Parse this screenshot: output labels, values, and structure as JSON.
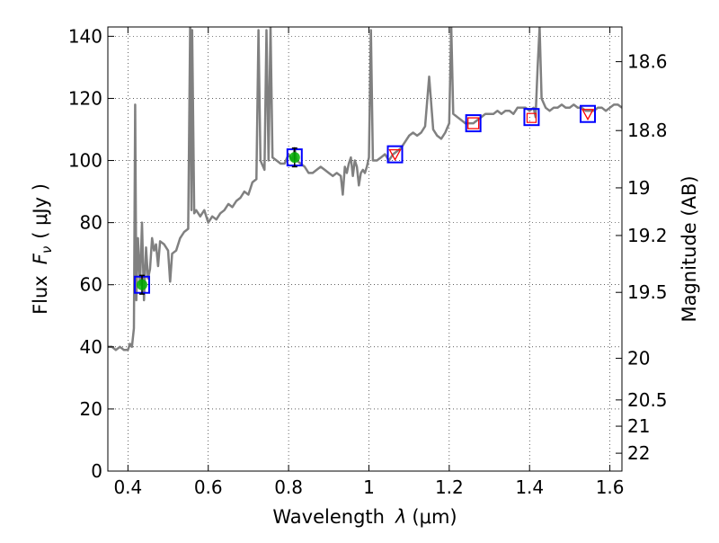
{
  "chart_data": {
    "type": "line",
    "xlabel_text": "Wavelength",
    "xlabel_symbol": "λ",
    "xlabel_unit": "(μm)",
    "ylabel_text": "Flux",
    "ylabel_symbol": "F",
    "ylabel_sub": "ν",
    "ylabel_unit": "( μJy )",
    "y2label": "Magnitude (AB)",
    "xlim": [
      0.35,
      1.63
    ],
    "ylim": [
      0,
      143
    ],
    "x_ticks": [
      0.4,
      0.6,
      0.8,
      1.0,
      1.2,
      1.4,
      1.6
    ],
    "x_tick_labels": [
      "0.4",
      "0.6",
      "0.8",
      "1",
      "1.2",
      "1.4",
      "1.6"
    ],
    "y_ticks": [
      0,
      20,
      40,
      60,
      80,
      100,
      120,
      140
    ],
    "y_tick_labels": [
      "0",
      "20",
      "40",
      "60",
      "80",
      "100",
      "120",
      "140"
    ],
    "mag_ticks": [
      18.6,
      18.8,
      19,
      19.2,
      19.5,
      20,
      20.5,
      21,
      22
    ],
    "mag_tick_labels": [
      "18.6",
      "18.8",
      "19",
      "19.2",
      "19.5",
      "20",
      "20.5",
      "21",
      "22"
    ],
    "grid": true,
    "colors": {
      "spectrum": "#808080",
      "box": "#0000ff",
      "green_marker": "#00b000",
      "red_marker": "#ff0000",
      "error_bar": "#000000",
      "axis": "#000000",
      "grid": "#000000"
    },
    "series": [
      {
        "points": [
          [
            0.35,
            40
          ],
          [
            0.36,
            40
          ],
          [
            0.37,
            39
          ],
          [
            0.38,
            40
          ],
          [
            0.39,
            39
          ],
          [
            0.4,
            39
          ],
          [
            0.405,
            41
          ],
          [
            0.41,
            40
          ],
          [
            0.415,
            46
          ],
          [
            0.418,
            118
          ],
          [
            0.421,
            55
          ],
          [
            0.425,
            75
          ],
          [
            0.43,
            60
          ],
          [
            0.435,
            80
          ],
          [
            0.44,
            55
          ],
          [
            0.445,
            72
          ],
          [
            0.45,
            62
          ],
          [
            0.455,
            65
          ],
          [
            0.46,
            75
          ],
          [
            0.465,
            71
          ],
          [
            0.47,
            73
          ],
          [
            0.475,
            66
          ],
          [
            0.48,
            74
          ],
          [
            0.49,
            73
          ],
          [
            0.5,
            71
          ],
          [
            0.505,
            61
          ],
          [
            0.51,
            70
          ],
          [
            0.52,
            71
          ],
          [
            0.53,
            75
          ],
          [
            0.54,
            77
          ],
          [
            0.55,
            78
          ],
          [
            0.555,
            144
          ],
          [
            0.558,
            84
          ],
          [
            0.56,
            142
          ],
          [
            0.565,
            83
          ],
          [
            0.57,
            84
          ],
          [
            0.58,
            82
          ],
          [
            0.59,
            84
          ],
          [
            0.6,
            80
          ],
          [
            0.61,
            82
          ],
          [
            0.62,
            81
          ],
          [
            0.63,
            83
          ],
          [
            0.64,
            84
          ],
          [
            0.65,
            86
          ],
          [
            0.66,
            85
          ],
          [
            0.67,
            87
          ],
          [
            0.68,
            88
          ],
          [
            0.69,
            90
          ],
          [
            0.7,
            89
          ],
          [
            0.71,
            93
          ],
          [
            0.72,
            94
          ],
          [
            0.725,
            142
          ],
          [
            0.73,
            100
          ],
          [
            0.74,
            97
          ],
          [
            0.745,
            142
          ],
          [
            0.75,
            100
          ],
          [
            0.755,
            143
          ],
          [
            0.76,
            101
          ],
          [
            0.77,
            100
          ],
          [
            0.78,
            99
          ],
          [
            0.79,
            99
          ],
          [
            0.8,
            102
          ],
          [
            0.81,
            100
          ],
          [
            0.815,
            104
          ],
          [
            0.82,
            100
          ],
          [
            0.83,
            99
          ],
          [
            0.84,
            98
          ],
          [
            0.85,
            96
          ],
          [
            0.86,
            96
          ],
          [
            0.87,
            97
          ],
          [
            0.88,
            98
          ],
          [
            0.89,
            97
          ],
          [
            0.9,
            96
          ],
          [
            0.91,
            95
          ],
          [
            0.92,
            96
          ],
          [
            0.93,
            95
          ],
          [
            0.935,
            89
          ],
          [
            0.94,
            98
          ],
          [
            0.945,
            96
          ],
          [
            0.95,
            99
          ],
          [
            0.955,
            101
          ],
          [
            0.96,
            95
          ],
          [
            0.965,
            100
          ],
          [
            0.97,
            98
          ],
          [
            0.975,
            92
          ],
          [
            0.98,
            96
          ],
          [
            0.985,
            97
          ],
          [
            0.99,
            96
          ],
          [
            0.995,
            98
          ],
          [
            1.0,
            101
          ],
          [
            1.005,
            142
          ],
          [
            1.01,
            100
          ],
          [
            1.02,
            100
          ],
          [
            1.03,
            101
          ],
          [
            1.04,
            102
          ],
          [
            1.05,
            100
          ],
          [
            1.06,
            102
          ],
          [
            1.07,
            103
          ],
          [
            1.08,
            104
          ],
          [
            1.09,
            106
          ],
          [
            1.1,
            108
          ],
          [
            1.11,
            109
          ],
          [
            1.12,
            108
          ],
          [
            1.13,
            109
          ],
          [
            1.14,
            111
          ],
          [
            1.15,
            127
          ],
          [
            1.16,
            110
          ],
          [
            1.17,
            108
          ],
          [
            1.18,
            107
          ],
          [
            1.19,
            109
          ],
          [
            1.2,
            112
          ],
          [
            1.205,
            143
          ],
          [
            1.21,
            115
          ],
          [
            1.22,
            114
          ],
          [
            1.23,
            113
          ],
          [
            1.24,
            112
          ],
          [
            1.25,
            112
          ],
          [
            1.26,
            112
          ],
          [
            1.27,
            113
          ],
          [
            1.28,
            114
          ],
          [
            1.29,
            115
          ],
          [
            1.3,
            115
          ],
          [
            1.31,
            115
          ],
          [
            1.32,
            116
          ],
          [
            1.33,
            115
          ],
          [
            1.34,
            116
          ],
          [
            1.35,
            116
          ],
          [
            1.36,
            115
          ],
          [
            1.37,
            117
          ],
          [
            1.38,
            117
          ],
          [
            1.39,
            117
          ],
          [
            1.4,
            116
          ],
          [
            1.41,
            117
          ],
          [
            1.415,
            114
          ],
          [
            1.42,
            130
          ],
          [
            1.425,
            143
          ],
          [
            1.43,
            120
          ],
          [
            1.44,
            117
          ],
          [
            1.45,
            116
          ],
          [
            1.46,
            117
          ],
          [
            1.47,
            117
          ],
          [
            1.48,
            118
          ],
          [
            1.49,
            117
          ],
          [
            1.5,
            117
          ],
          [
            1.51,
            118
          ],
          [
            1.52,
            117
          ],
          [
            1.53,
            117
          ],
          [
            1.54,
            116
          ],
          [
            1.55,
            116
          ],
          [
            1.56,
            116
          ],
          [
            1.57,
            117
          ],
          [
            1.58,
            117
          ],
          [
            1.59,
            116
          ],
          [
            1.6,
            117
          ],
          [
            1.61,
            118
          ],
          [
            1.62,
            118
          ],
          [
            1.63,
            117
          ]
        ]
      }
    ],
    "photometry": [
      {
        "x": 0.435,
        "y": 60,
        "marker": "circle",
        "color": "#00b000",
        "err": 3
      },
      {
        "x": 0.815,
        "y": 101,
        "marker": "circle",
        "color": "#00b000",
        "err": 3
      },
      {
        "x": 1.065,
        "y": 102,
        "marker": "triangle_down",
        "color": "#ff0000"
      },
      {
        "x": 1.26,
        "y": 112,
        "marker": "square",
        "color": "#ff0000"
      },
      {
        "x": 1.405,
        "y": 114,
        "marker": "square_small",
        "color": "#ff0000"
      },
      {
        "x": 1.545,
        "y": 115,
        "marker": "triangle_down",
        "color": "#ff0000"
      }
    ],
    "boxes": [
      {
        "x": 0.435,
        "y": 60
      },
      {
        "x": 0.815,
        "y": 101
      },
      {
        "x": 1.065,
        "y": 102
      },
      {
        "x": 1.26,
        "y": 112
      },
      {
        "x": 1.405,
        "y": 114
      },
      {
        "x": 1.545,
        "y": 115
      }
    ]
  }
}
